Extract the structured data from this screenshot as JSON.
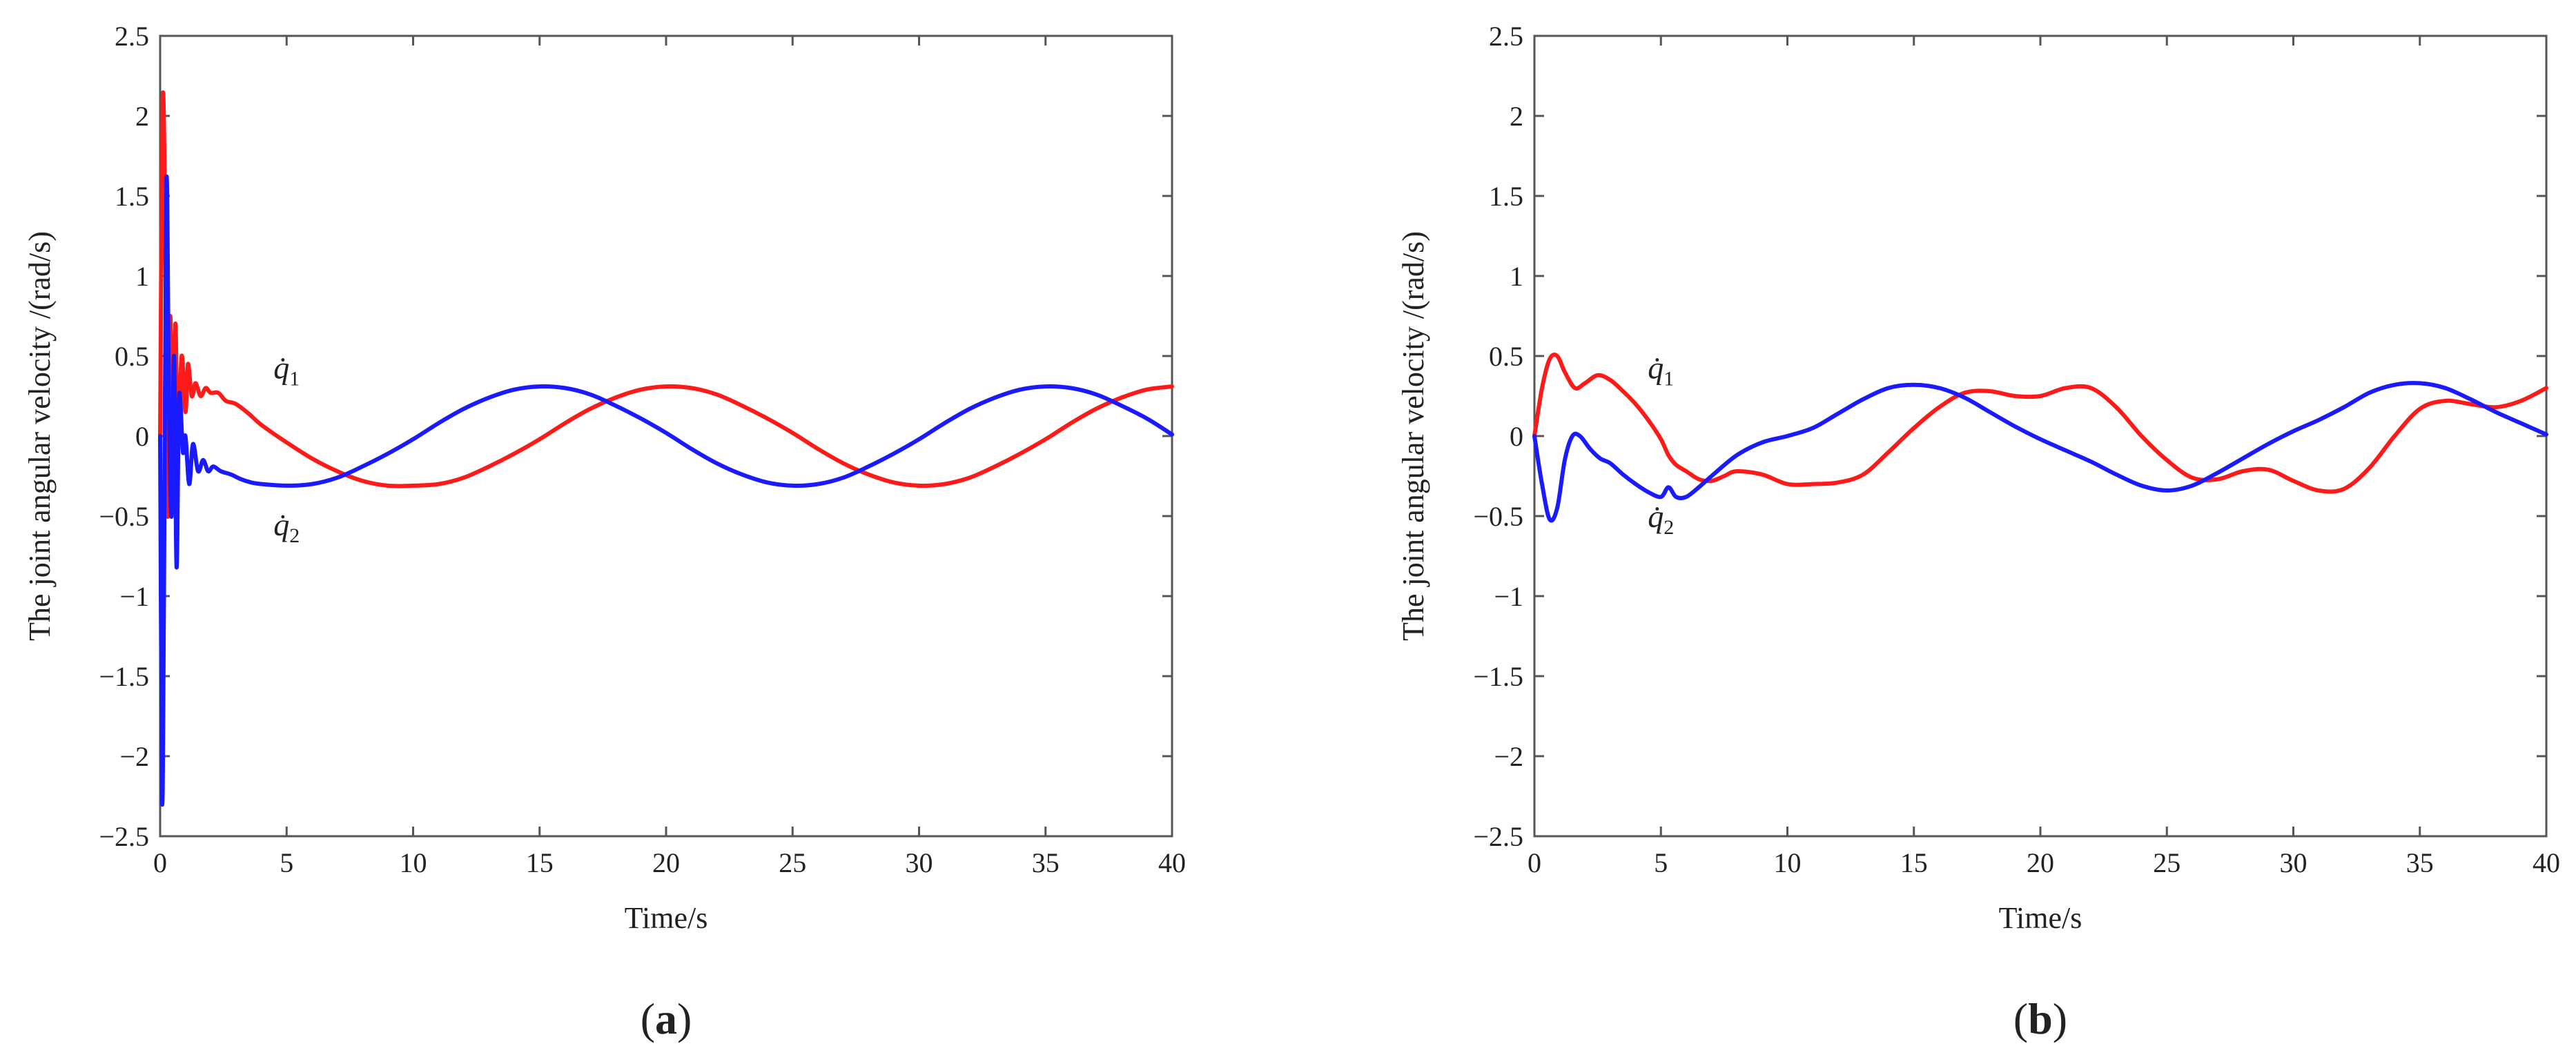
{
  "chart_data": [
    {
      "type": "line",
      "panel": "a",
      "caption": "(a)",
      "caption_bold": "a",
      "xlabel": "Time/s",
      "ylabel": "The joint angular velocity /(rad/s)",
      "xlim": [
        0,
        40
      ],
      "ylim": [
        -2.5,
        2.5
      ],
      "xticks": [
        "0",
        "5",
        "10",
        "15",
        "20",
        "25",
        "30",
        "35",
        "40"
      ],
      "yticks": [
        "2.5",
        "2",
        "1.5",
        "1",
        "0.5",
        "0",
        "−0.5",
        "−1",
        "−1.5",
        "−2",
        "−2.5"
      ],
      "grid": false,
      "annotations": [
        {
          "name": "q̇",
          "sub": "1",
          "x": 5.0,
          "y": 0.36
        },
        {
          "name": "q̇",
          "sub": "2",
          "x": 5.0,
          "y": -0.62
        }
      ],
      "series": [
        {
          "name": "q̇1",
          "color": "#ff1a1a",
          "x": [
            0,
            0.1,
            0.2,
            0.3,
            0.4,
            0.5,
            0.6,
            0.7,
            0.85,
            1.0,
            1.1,
            1.25,
            1.4,
            1.6,
            1.8,
            2.0,
            2.3,
            2.6,
            3,
            3.5,
            4,
            5,
            6,
            7,
            8,
            9,
            10,
            11,
            12,
            13,
            14,
            15,
            16,
            17,
            18,
            19,
            20,
            21,
            22,
            23,
            24,
            25,
            26,
            27,
            28,
            29,
            30,
            31,
            32,
            33,
            34,
            35,
            36,
            37,
            38,
            39,
            40
          ],
          "y": [
            0.0,
            2.1,
            1.3,
            -0.5,
            0.75,
            -0.35,
            0.7,
            -0.05,
            0.5,
            0.15,
            0.45,
            0.25,
            0.33,
            0.25,
            0.3,
            0.27,
            0.27,
            0.22,
            0.2,
            0.14,
            0.07,
            -0.04,
            -0.14,
            -0.22,
            -0.28,
            -0.31,
            -0.31,
            -0.3,
            -0.26,
            -0.19,
            -0.11,
            -0.02,
            0.08,
            0.17,
            0.24,
            0.29,
            0.31,
            0.3,
            0.26,
            0.19,
            0.11,
            0.02,
            -0.08,
            -0.17,
            -0.24,
            -0.29,
            -0.31,
            -0.3,
            -0.26,
            -0.19,
            -0.11,
            -0.02,
            0.08,
            0.17,
            0.24,
            0.29,
            0.31
          ]
        },
        {
          "name": "q̇2",
          "color": "#1a1aff",
          "x": [
            0,
            0.08,
            0.15,
            0.25,
            0.35,
            0.45,
            0.55,
            0.65,
            0.75,
            0.9,
            1.0,
            1.15,
            1.3,
            1.5,
            1.7,
            1.9,
            2.1,
            2.4,
            2.8,
            3.2,
            3.6,
            4,
            5,
            6,
            7,
            8,
            9,
            10,
            11,
            12,
            13,
            14,
            15,
            16,
            17,
            18,
            19,
            20,
            21,
            22,
            23,
            24,
            25,
            26,
            27,
            28,
            29,
            30,
            31,
            32,
            33,
            34,
            35,
            36,
            37,
            38,
            39,
            40
          ],
          "y": [
            0.0,
            -2.28,
            -1.0,
            1.6,
            0.2,
            -0.5,
            0.5,
            -0.82,
            0.25,
            -0.1,
            0.0,
            -0.3,
            -0.05,
            -0.22,
            -0.15,
            -0.22,
            -0.19,
            -0.22,
            -0.24,
            -0.27,
            -0.29,
            -0.3,
            -0.31,
            -0.3,
            -0.26,
            -0.19,
            -0.11,
            -0.02,
            0.08,
            0.17,
            0.24,
            0.29,
            0.31,
            0.3,
            0.26,
            0.19,
            0.11,
            0.02,
            -0.08,
            -0.17,
            -0.24,
            -0.29,
            -0.31,
            -0.3,
            -0.26,
            -0.19,
            -0.11,
            -0.02,
            0.08,
            0.17,
            0.24,
            0.29,
            0.31,
            0.3,
            0.26,
            0.19,
            0.11,
            0.01
          ]
        }
      ]
    },
    {
      "type": "line",
      "panel": "b",
      "caption": "(b)",
      "caption_bold": "b",
      "xlabel": "Time/s",
      "ylabel": "The joint angular velocity /(rad/s)",
      "xlim": [
        0,
        40
      ],
      "ylim": [
        -2.5,
        2.5
      ],
      "xticks": [
        "0",
        "5",
        "10",
        "15",
        "20",
        "25",
        "30",
        "35",
        "40"
      ],
      "yticks": [
        "2.5",
        "2",
        "1.5",
        "1",
        "0.5",
        "0",
        "−0.5",
        "−1",
        "−1.5",
        "−2",
        "−2.5"
      ],
      "grid": false,
      "annotations": [
        {
          "name": "q̇",
          "sub": "1",
          "x": 5.0,
          "y": 0.36
        },
        {
          "name": "q̇",
          "sub": "2",
          "x": 5.0,
          "y": -0.57
        }
      ],
      "series": [
        {
          "name": "q̇1",
          "color": "#ff1a1a",
          "x": [
            0,
            0.3,
            0.6,
            0.9,
            1.2,
            1.6,
            2.0,
            2.5,
            3.0,
            3.5,
            4.0,
            4.5,
            5.0,
            5.3,
            5.6,
            6.0,
            6.5,
            7.0,
            7.5,
            8.0,
            9.0,
            10,
            11,
            12,
            13,
            14,
            15,
            16,
            17,
            18,
            19,
            20,
            21,
            22,
            23,
            24,
            25,
            26,
            27,
            28,
            29,
            30,
            31,
            32,
            33,
            34,
            35,
            36,
            37,
            38,
            39,
            40
          ],
          "y": [
            0.0,
            0.3,
            0.48,
            0.5,
            0.4,
            0.3,
            0.33,
            0.38,
            0.35,
            0.28,
            0.2,
            0.1,
            -0.02,
            -0.12,
            -0.18,
            -0.22,
            -0.27,
            -0.28,
            -0.25,
            -0.22,
            -0.24,
            -0.3,
            -0.3,
            -0.29,
            -0.24,
            -0.1,
            0.05,
            0.18,
            0.27,
            0.28,
            0.25,
            0.25,
            0.3,
            0.3,
            0.18,
            0.0,
            -0.15,
            -0.26,
            -0.27,
            -0.22,
            -0.21,
            -0.28,
            -0.34,
            -0.33,
            -0.2,
            0.0,
            0.17,
            0.22,
            0.2,
            0.18,
            0.22,
            0.3
          ]
        },
        {
          "name": "q̇2",
          "color": "#1a1aff",
          "x": [
            0,
            0.3,
            0.6,
            0.9,
            1.2,
            1.5,
            1.8,
            2.2,
            2.6,
            3.0,
            3.5,
            4.0,
            4.5,
            5.0,
            5.3,
            5.6,
            6.0,
            6.5,
            7.0,
            8.0,
            9.0,
            10,
            11,
            12,
            13,
            14,
            15,
            16,
            17,
            18,
            19,
            20,
            21,
            22,
            23,
            24,
            25,
            26,
            27,
            28,
            29,
            30,
            31,
            32,
            33,
            34,
            35,
            36,
            37,
            38,
            39,
            40
          ],
          "y": [
            0.0,
            -0.3,
            -0.52,
            -0.45,
            -0.15,
            0.0,
            0.0,
            -0.08,
            -0.14,
            -0.17,
            -0.24,
            -0.3,
            -0.35,
            -0.38,
            -0.32,
            -0.38,
            -0.38,
            -0.32,
            -0.25,
            -0.12,
            -0.04,
            0.0,
            0.05,
            0.14,
            0.23,
            0.3,
            0.32,
            0.3,
            0.24,
            0.15,
            0.06,
            -0.02,
            -0.09,
            -0.16,
            -0.24,
            -0.31,
            -0.34,
            -0.31,
            -0.23,
            -0.14,
            -0.05,
            0.03,
            0.1,
            0.18,
            0.27,
            0.32,
            0.33,
            0.3,
            0.23,
            0.15,
            0.08,
            0.01
          ]
        }
      ]
    }
  ]
}
